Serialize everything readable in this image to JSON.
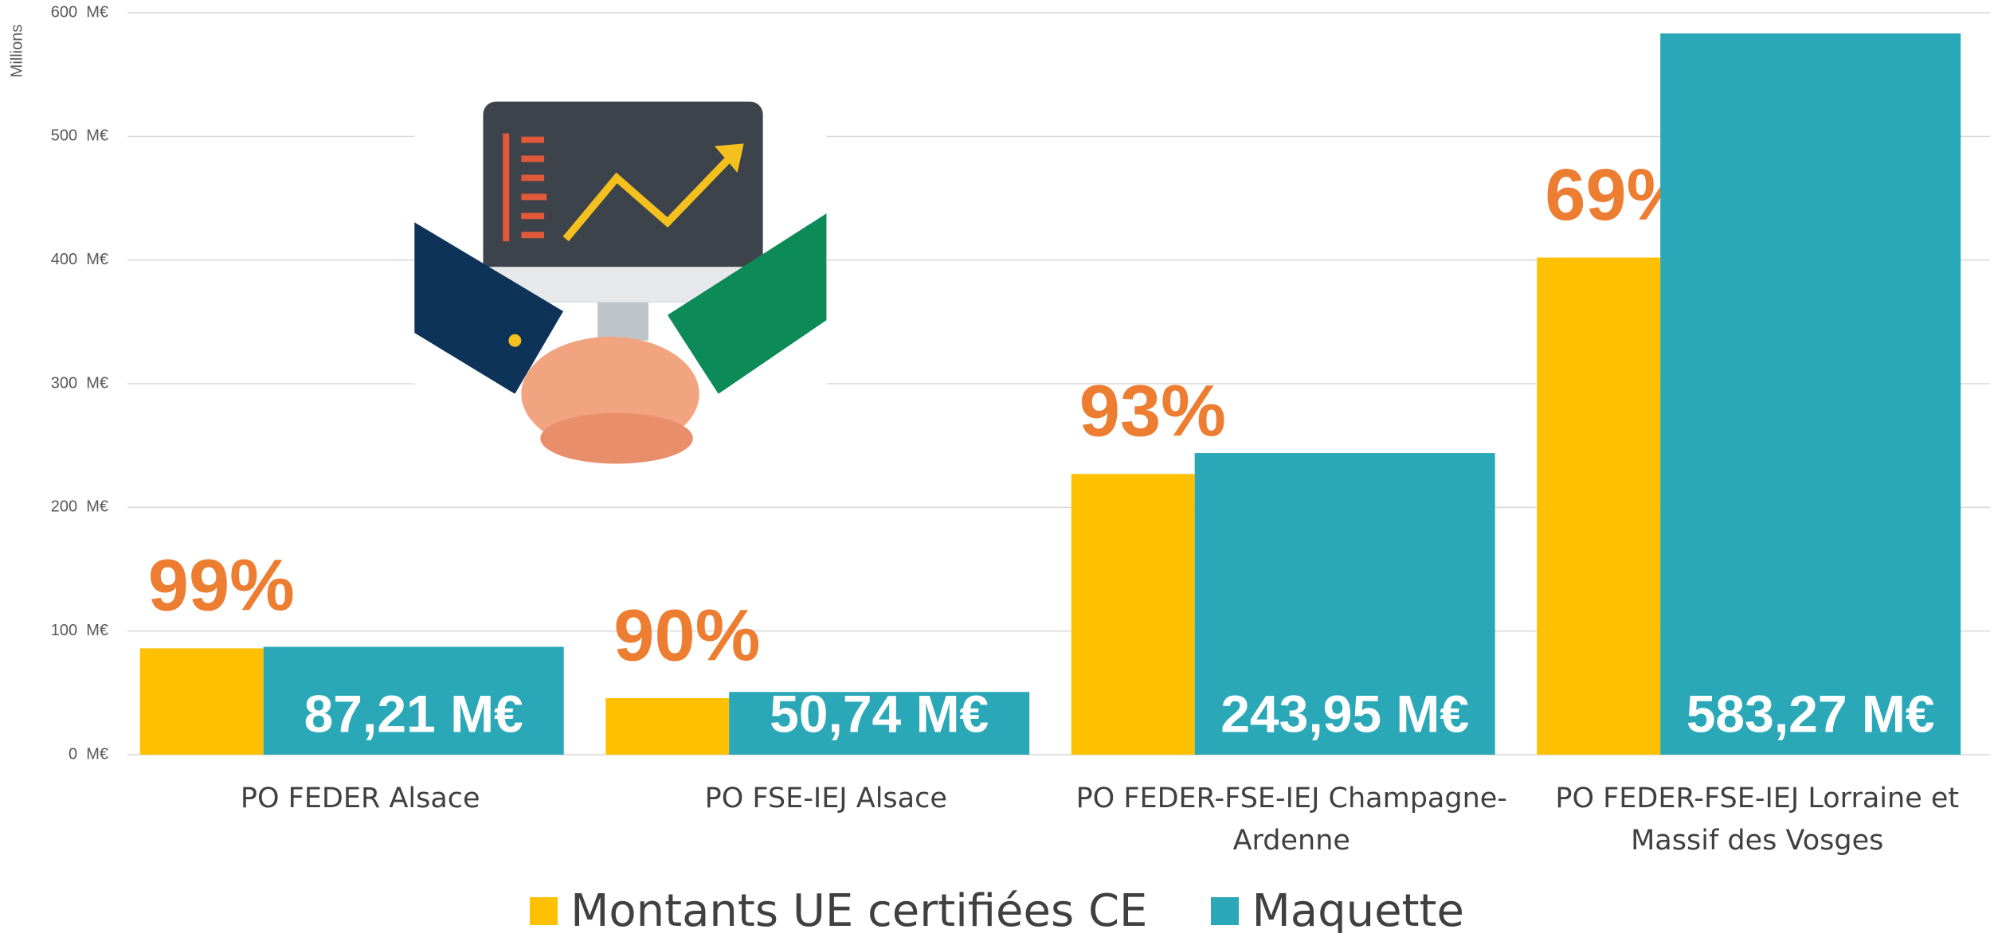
{
  "chart_data": {
    "type": "bar",
    "y_axis_title": "Millions",
    "categories": [
      "PO FEDER Alsace",
      "PO FSE-IEJ Alsace",
      "PO FEDER-FSE-IEJ Champagne-Ardenne",
      "PO FEDER-FSE-IEJ Lorraine et Massif des Vosges"
    ],
    "series": [
      {
        "name": "Montants UE certifiées CE",
        "color": "#ffc000",
        "values": [
          86,
          45.7,
          227,
          402
        ]
      },
      {
        "name": "Maquette",
        "color": "#2aa8b7",
        "values": [
          87.21,
          50.74,
          243.95,
          583.27
        ],
        "value_labels": [
          "87,21 M€",
          "50,74 M€",
          "243,95 M€",
          "583,27 M€"
        ]
      }
    ],
    "annotations": [
      "99%",
      "90%",
      "93%",
      "69%"
    ],
    "annotation_color": "#ed7d31",
    "ylim": [
      0,
      600
    ],
    "yticks": [
      {
        "value": 0,
        "label": "0  M€"
      },
      {
        "value": 100,
        "label": "100  M€"
      },
      {
        "value": 200,
        "label": "200  M€"
      },
      {
        "value": 300,
        "label": "300  M€"
      },
      {
        "value": 400,
        "label": "400  M€"
      },
      {
        "value": 500,
        "label": "500  M€"
      },
      {
        "value": 600,
        "label": "600  M€"
      }
    ],
    "grid": true,
    "legend": "bottom"
  }
}
